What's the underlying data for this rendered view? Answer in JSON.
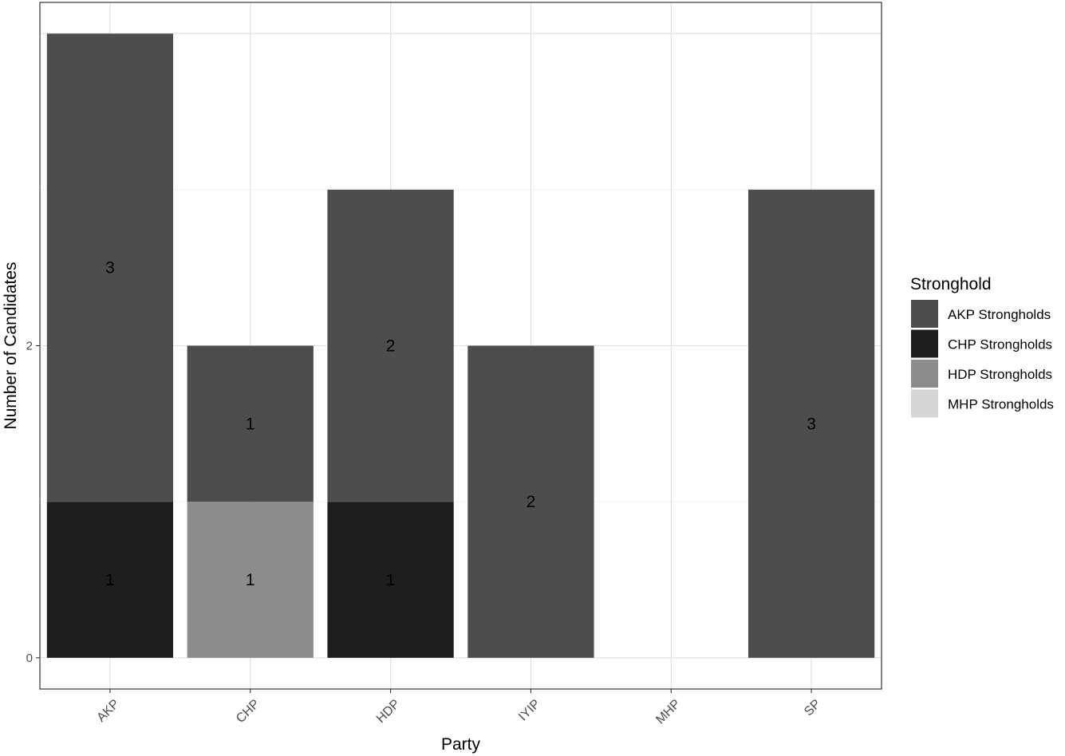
{
  "chart_data": {
    "type": "bar",
    "stacked": true,
    "xlabel": "Party",
    "ylabel": "Number of Candidates",
    "categories": [
      "AKP",
      "CHP",
      "HDP",
      "IYIP",
      "MHP",
      "SP"
    ],
    "y_ticks": [
      0,
      2
    ],
    "ylim": [
      -0.2,
      4.2
    ],
    "grid": true,
    "legend": {
      "title": "Stronghold",
      "position": "right"
    },
    "series": [
      {
        "name": "AKP Strongholds",
        "color": "#4d4d4d",
        "values": [
          3,
          1,
          2,
          2,
          0,
          3
        ]
      },
      {
        "name": "CHP Strongholds",
        "color": "#1e1e1e",
        "values": [
          1,
          0,
          1,
          0,
          0,
          0
        ]
      },
      {
        "name": "HDP Strongholds",
        "color": "#8c8c8c",
        "values": [
          0,
          1,
          0,
          0,
          0,
          0
        ]
      },
      {
        "name": "MHP Strongholds",
        "color": "#d6d6d6",
        "values": [
          0,
          0,
          0,
          0,
          0,
          0
        ]
      }
    ],
    "stack_order_bottom_to_top": [
      "MHP Strongholds",
      "HDP Strongholds",
      "CHP Strongholds",
      "AKP Strongholds"
    ]
  }
}
